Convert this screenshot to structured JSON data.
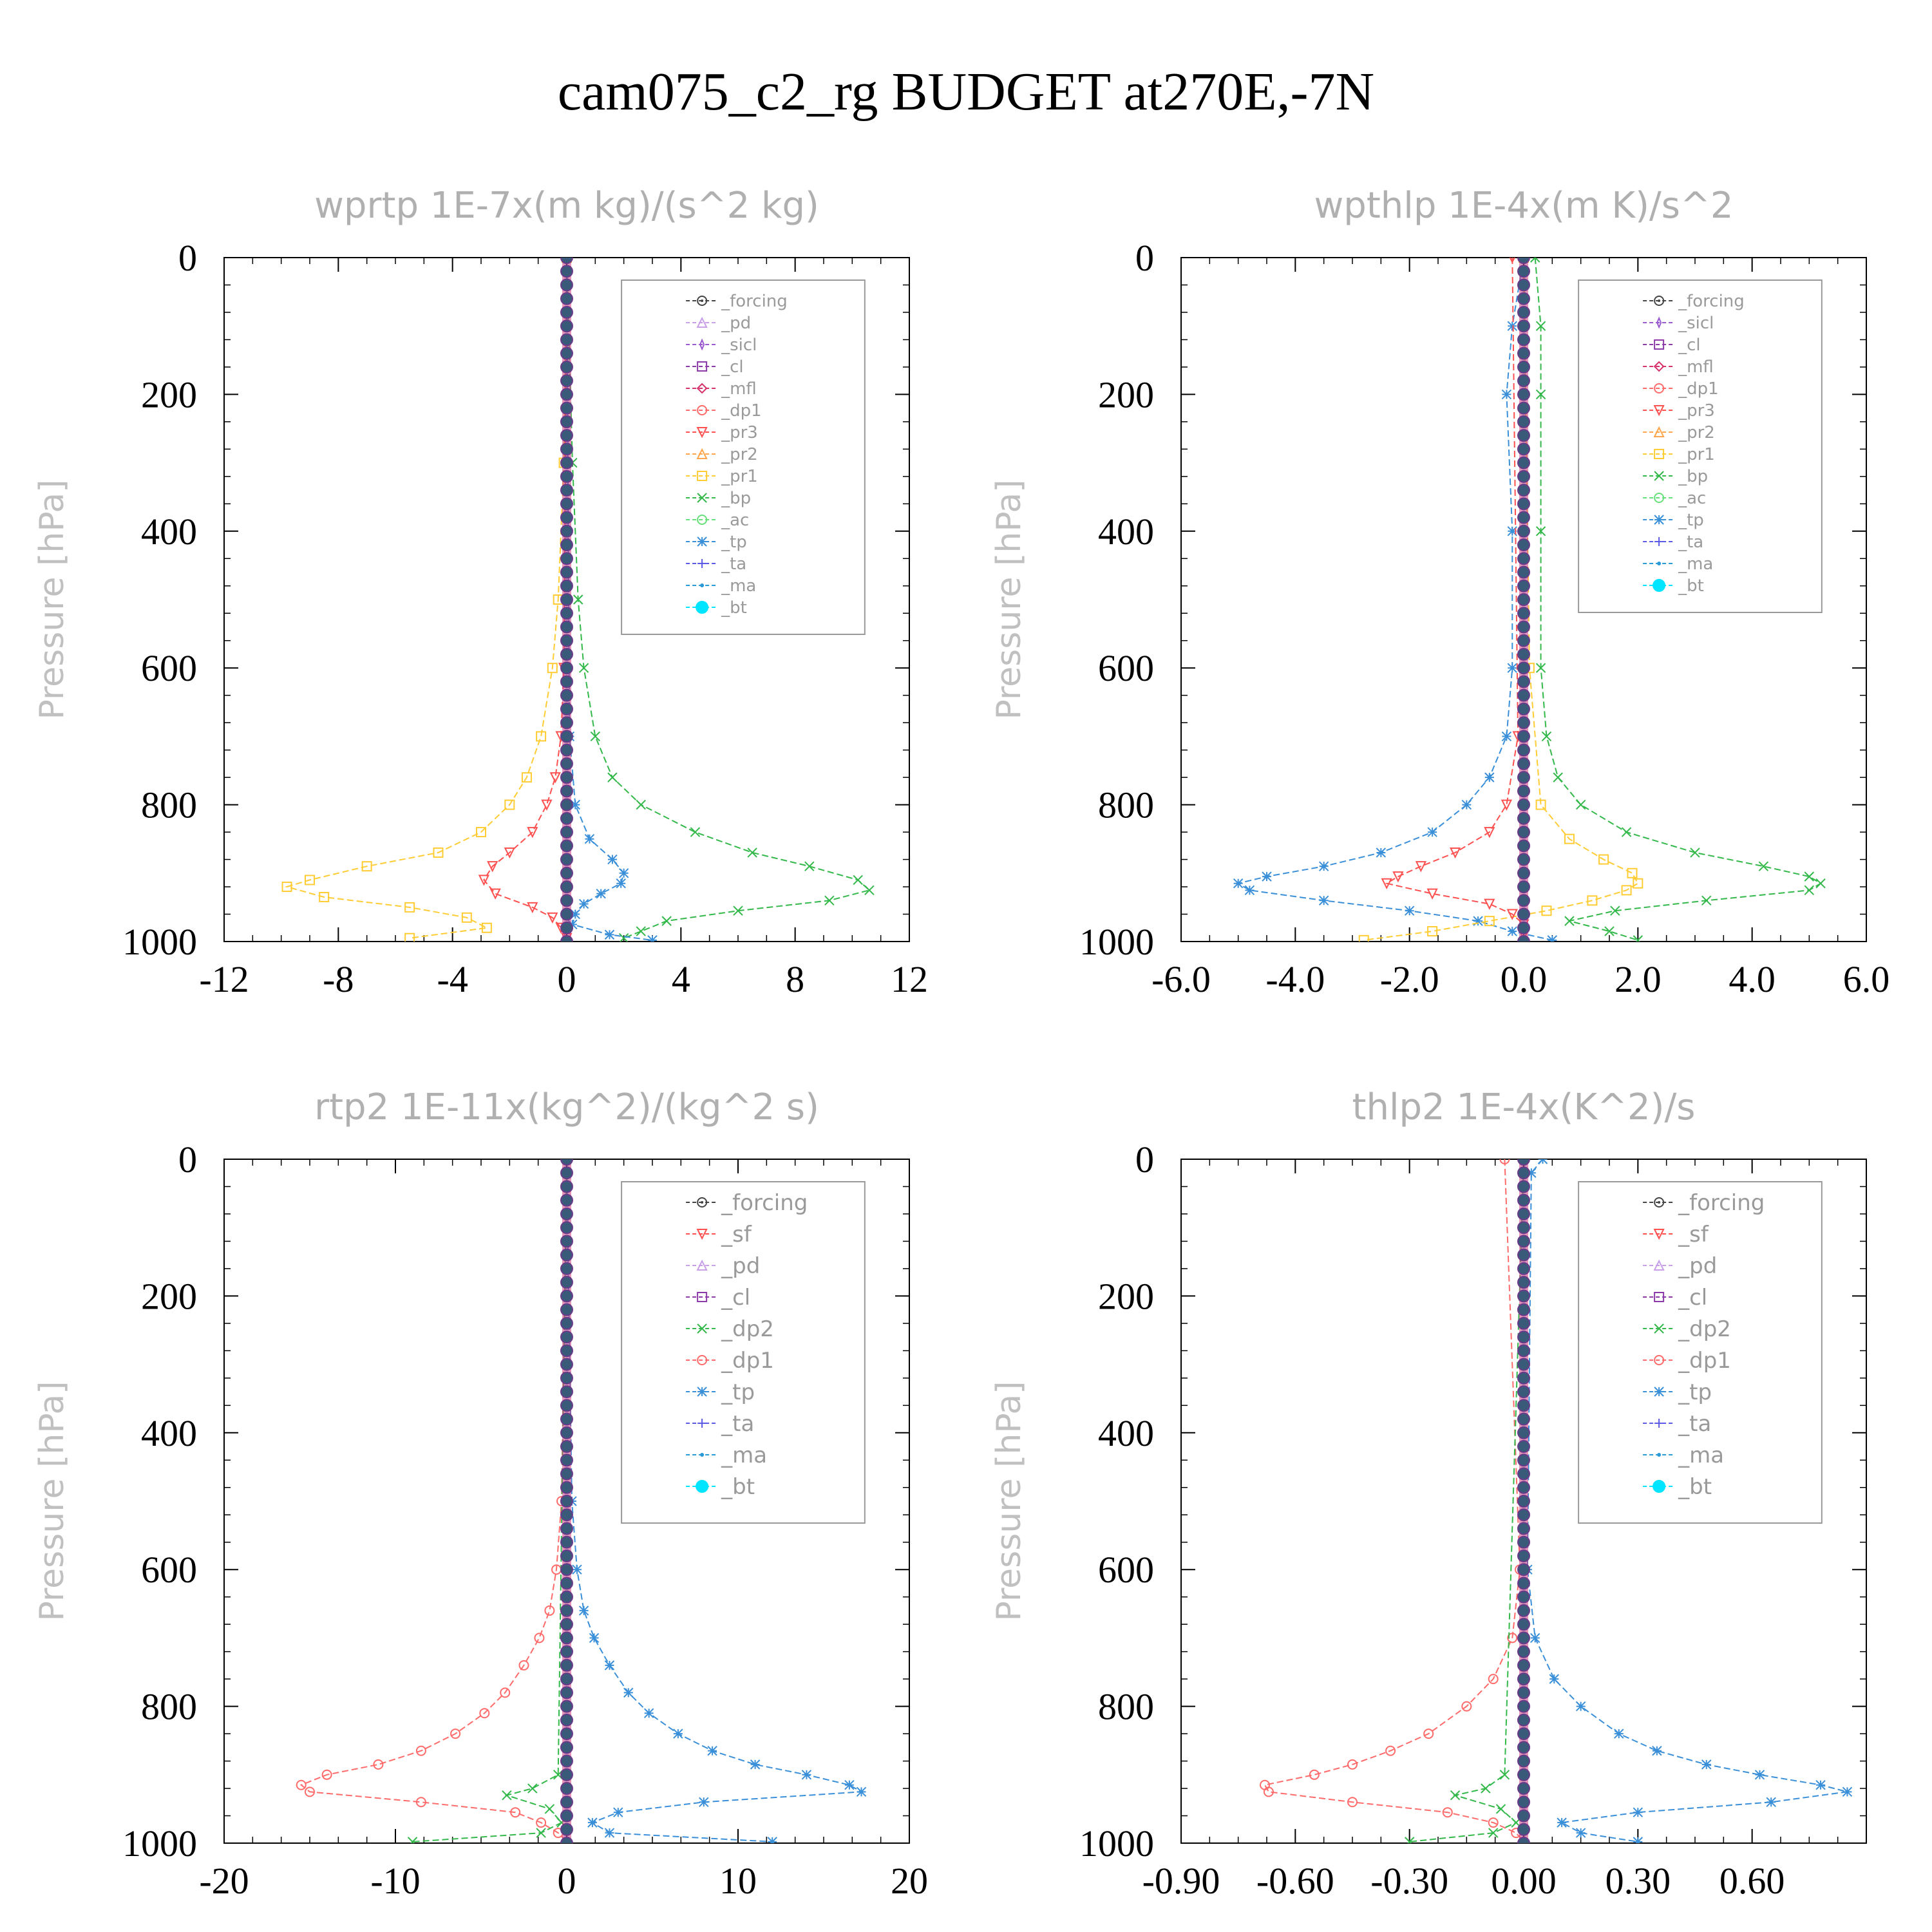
{
  "title": "cam075_c2_rg  BUDGET at270E,-7N",
  "colors": {
    "_forcing": "#444444",
    "_pd": "#c9a0e8",
    "_sicl": "#9b59d0",
    "_cl": "#8b3aa8",
    "_mfl": "#d6336c",
    "_dp1": "#ff6a6a",
    "_pr3": "#ff5050",
    "_pr2": "#ffa64d",
    "_pr1": "#ffcc33",
    "_bp": "#33b84a",
    "_ac": "#66e07a",
    "_tp": "#3a8fd9",
    "_ta": "#5a5ae6",
    "_ma": "#2a9ad6",
    "_bt": "#00e5ff",
    "_sf": "#ff5050",
    "_dp2": "#33b84a"
  },
  "chart_data": [
    {
      "type": "line",
      "title": "wprtp   1E-7x(m kg)/(s^2 kg)",
      "ylabel": "Pressure [hPa]",
      "xlim": [
        -12,
        12
      ],
      "ylim": [
        1000,
        0
      ],
      "xticks": [
        "-12",
        "-8",
        "-4",
        "0",
        "4",
        "8",
        "12"
      ],
      "xtick_values": [
        -12,
        -8,
        -4,
        0,
        4,
        8,
        12
      ],
      "yticks": [
        "0",
        "200",
        "400",
        "600",
        "800",
        "1000"
      ],
      "ytick_values": [
        0,
        200,
        400,
        600,
        800,
        1000
      ],
      "legend_style": "small",
      "legend": [
        "_forcing",
        "_pd",
        "_sicl",
        "_cl",
        "_mfl",
        "_dp1",
        "_pr3",
        "_pr2",
        "_pr1",
        "_bp",
        "_ac",
        "_tp",
        "_ta",
        "_ma",
        "_bt"
      ],
      "series": [
        {
          "name": "_pr1",
          "p": [
            0,
            300,
            500,
            600,
            700,
            760,
            800,
            840,
            870,
            890,
            910,
            920,
            935,
            950,
            965,
            980,
            995
          ],
          "x": [
            0,
            -0.1,
            -0.3,
            -0.5,
            -0.9,
            -1.4,
            -2.0,
            -3.0,
            -4.5,
            -7,
            -9,
            -9.8,
            -8.5,
            -5.5,
            -3.5,
            -2.8,
            -5.5
          ]
        },
        {
          "name": "_pr3",
          "p": [
            0,
            600,
            700,
            760,
            800,
            840,
            870,
            890,
            910,
            930,
            950,
            965,
            980,
            995
          ],
          "x": [
            0,
            -0.1,
            -0.2,
            -0.4,
            -0.7,
            -1.2,
            -2.0,
            -2.6,
            -2.9,
            -2.5,
            -1.2,
            -0.5,
            -0.2,
            0
          ]
        },
        {
          "name": "_bp",
          "p": [
            0,
            300,
            500,
            600,
            700,
            760,
            800,
            840,
            870,
            890,
            910,
            925,
            940,
            955,
            970,
            985,
            995
          ],
          "x": [
            0,
            0.2,
            0.4,
            0.6,
            1.0,
            1.6,
            2.6,
            4.5,
            6.5,
            8.5,
            10.2,
            10.6,
            9.2,
            6.0,
            3.5,
            2.6,
            2.0
          ]
        },
        {
          "name": "_tp",
          "p": [
            0,
            700,
            800,
            850,
            880,
            900,
            915,
            930,
            945,
            960,
            975,
            990,
            998
          ],
          "x": [
            0,
            0.1,
            0.3,
            0.8,
            1.6,
            2.0,
            1.9,
            1.2,
            0.6,
            0.3,
            0.2,
            1.5,
            3.0
          ]
        },
        {
          "name": "_forcing",
          "p": [
            0,
            1000
          ],
          "x": [
            0,
            0
          ],
          "bold": true
        }
      ]
    },
    {
      "type": "line",
      "title": "wpthlp   1E-4x(m K)/s^2",
      "ylabel": "Pressure [hPa]",
      "xlim": [
        -6,
        6
      ],
      "ylim": [
        1000,
        0
      ],
      "xticks": [
        "-6.0",
        "-4.0",
        "-2.0",
        "0.0",
        "2.0",
        "4.0",
        "6.0"
      ],
      "xtick_values": [
        -6,
        -4,
        -2,
        0,
        2,
        4,
        6
      ],
      "yticks": [
        "0",
        "200",
        "400",
        "600",
        "800",
        "1000"
      ],
      "ytick_values": [
        0,
        200,
        400,
        600,
        800,
        1000
      ],
      "legend_style": "small",
      "legend": [
        "_forcing",
        "_sicl",
        "_cl",
        "_mfl",
        "_dp1",
        "_pr3",
        "_pr2",
        "_pr1",
        "_bp",
        "_ac",
        "_tp",
        "_ta",
        "_ma",
        "_bt"
      ],
      "series": [
        {
          "name": "_tp",
          "p": [
            0,
            100,
            200,
            400,
            600,
            700,
            760,
            800,
            840,
            870,
            890,
            905,
            915,
            925,
            940,
            955,
            970,
            985,
            998
          ],
          "x": [
            0,
            -0.2,
            -0.3,
            -0.2,
            -0.2,
            -0.3,
            -0.6,
            -1.0,
            -1.6,
            -2.5,
            -3.5,
            -4.5,
            -5.0,
            -4.8,
            -3.5,
            -2.0,
            -0.8,
            -0.2,
            0.5
          ]
        },
        {
          "name": "_bp",
          "p": [
            0,
            100,
            200,
            400,
            600,
            700,
            760,
            800,
            840,
            870,
            890,
            905,
            915,
            925,
            940,
            955,
            970,
            985,
            998
          ],
          "x": [
            0.2,
            0.3,
            0.3,
            0.3,
            0.3,
            0.4,
            0.6,
            1.0,
            1.8,
            3.0,
            4.2,
            5.0,
            5.2,
            5.0,
            3.2,
            1.6,
            0.8,
            1.5,
            2.0
          ]
        },
        {
          "name": "_pr1",
          "p": [
            0,
            600,
            800,
            850,
            880,
            900,
            915,
            925,
            940,
            955,
            970,
            985,
            998
          ],
          "x": [
            0,
            0.1,
            0.3,
            0.8,
            1.4,
            1.9,
            2.0,
            1.8,
            1.2,
            0.4,
            -0.6,
            -1.6,
            -2.8
          ]
        },
        {
          "name": "_pr3",
          "p": [
            0,
            700,
            800,
            840,
            870,
            890,
            905,
            915,
            930,
            945,
            960,
            975,
            990
          ],
          "x": [
            -0.2,
            -0.1,
            -0.3,
            -0.6,
            -1.2,
            -1.8,
            -2.2,
            -2.4,
            -1.6,
            -0.6,
            -0.2,
            0,
            0
          ]
        },
        {
          "name": "_forcing",
          "p": [
            0,
            1000
          ],
          "x": [
            0,
            0
          ],
          "bold": true
        }
      ]
    },
    {
      "type": "line",
      "title": "rtp2   1E-11x(kg^2)/(kg^2 s)",
      "ylabel": "Pressure [hPa]",
      "xlim": [
        -20,
        20
      ],
      "ylim": [
        1000,
        0
      ],
      "xticks": [
        "-20",
        "-10",
        "0",
        "10",
        "20"
      ],
      "xtick_values": [
        -20,
        -10,
        0,
        10,
        20
      ],
      "yticks": [
        "0",
        "200",
        "400",
        "600",
        "800",
        "1000"
      ],
      "ytick_values": [
        0,
        200,
        400,
        600,
        800,
        1000
      ],
      "legend_style": "big",
      "legend": [
        "_forcing",
        "_sf",
        "_pd",
        "_cl",
        "_dp2",
        "_dp1",
        "_tp",
        "_ta",
        "_ma",
        "_bt"
      ],
      "series": [
        {
          "name": "_dp1",
          "p": [
            0,
            500,
            600,
            660,
            700,
            740,
            780,
            810,
            840,
            865,
            885,
            900,
            915,
            925,
            940,
            955,
            970,
            985,
            998
          ],
          "x": [
            0,
            -0.3,
            -0.6,
            -1.0,
            -1.6,
            -2.5,
            -3.6,
            -4.8,
            -6.5,
            -8.5,
            -11,
            -14,
            -15.5,
            -15,
            -8.5,
            -3.0,
            -1.5,
            -0.5,
            0
          ]
        },
        {
          "name": "_tp",
          "p": [
            0,
            500,
            600,
            660,
            700,
            740,
            780,
            810,
            840,
            865,
            885,
            900,
            915,
            925,
            940,
            955,
            970,
            985,
            998
          ],
          "x": [
            0,
            0.3,
            0.6,
            1.0,
            1.6,
            2.5,
            3.6,
            4.8,
            6.5,
            8.5,
            11,
            14,
            16.5,
            17.2,
            8.0,
            3.0,
            1.5,
            2.5,
            12.0
          ]
        },
        {
          "name": "_dp2",
          "p": [
            0,
            900,
            920,
            930,
            950,
            970,
            985,
            998
          ],
          "x": [
            0,
            -0.5,
            -2.0,
            -3.5,
            -1.0,
            -0.3,
            -1.5,
            -9.0
          ]
        },
        {
          "name": "_forcing",
          "p": [
            0,
            1000
          ],
          "x": [
            0,
            0
          ],
          "bold": true
        }
      ]
    },
    {
      "type": "line",
      "title": "thlp2   1E-4x(K^2)/s",
      "ylabel": "Pressure [hPa]",
      "xlim": [
        -0.9,
        0.9
      ],
      "ylim": [
        1000,
        0
      ],
      "xticks": [
        "-0.90",
        "-0.60",
        "-0.30",
        "0.00",
        "0.30",
        "0.60"
      ],
      "xtick_values": [
        -0.9,
        -0.6,
        -0.3,
        0,
        0.3,
        0.6
      ],
      "yticks": [
        "0",
        "200",
        "400",
        "600",
        "800",
        "1000"
      ],
      "ytick_values": [
        0,
        200,
        400,
        600,
        800,
        1000
      ],
      "legend_style": "big",
      "legend": [
        "_forcing",
        "_sf",
        "_pd",
        "_cl",
        "_dp2",
        "_dp1",
        "_tp",
        "_ta",
        "_ma",
        "_bt"
      ],
      "series": [
        {
          "name": "_dp1",
          "p": [
            0,
            600,
            700,
            760,
            800,
            840,
            865,
            885,
            900,
            915,
            925,
            940,
            955,
            970,
            985,
            998
          ],
          "x": [
            -0.05,
            -0.01,
            -0.03,
            -0.08,
            -0.15,
            -0.25,
            -0.35,
            -0.45,
            -0.55,
            -0.68,
            -0.67,
            -0.45,
            -0.2,
            -0.08,
            -0.02,
            0
          ]
        },
        {
          "name": "_tp",
          "p": [
            0,
            20,
            600,
            700,
            760,
            800,
            840,
            865,
            885,
            900,
            915,
            925,
            940,
            955,
            970,
            985,
            998
          ],
          "x": [
            0.05,
            0.02,
            0.01,
            0.03,
            0.08,
            0.15,
            0.25,
            0.35,
            0.48,
            0.62,
            0.78,
            0.85,
            0.65,
            0.3,
            0.1,
            0.15,
            0.3
          ]
        },
        {
          "name": "_dp2",
          "p": [
            0,
            900,
            920,
            930,
            950,
            970,
            985,
            998
          ],
          "x": [
            0,
            -0.05,
            -0.1,
            -0.18,
            -0.06,
            -0.02,
            -0.08,
            -0.3
          ]
        },
        {
          "name": "_forcing",
          "p": [
            0,
            1000
          ],
          "x": [
            0,
            0
          ],
          "bold": true
        }
      ]
    }
  ]
}
